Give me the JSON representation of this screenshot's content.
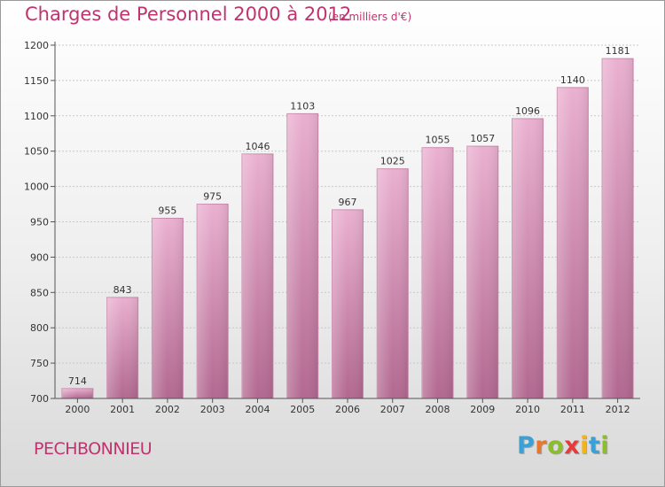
{
  "title": "Charges de Personnel 2000 à 2012",
  "subtitle": "(en milliers d'€)",
  "town": "PECHBONNIEU",
  "logo": {
    "letters": [
      "P",
      "r",
      "o",
      "x",
      "i",
      "t",
      "i"
    ],
    "colors": [
      "#3aa1d6",
      "#e8762b",
      "#8cbd2a",
      "#e83a3a",
      "#f2b31c",
      "#3aa1d6",
      "#8cbd2a"
    ]
  },
  "colors": {
    "bar": "#d98fb8",
    "bar_top": "#eab0d0",
    "bar_bottom": "#b26890",
    "accent": "#c0336e"
  },
  "chart_data": {
    "type": "bar",
    "title": "Charges de Personnel 2000 à 2012",
    "subtitle": "(en milliers d'€)",
    "xlabel": "",
    "ylabel": "",
    "categories": [
      "2000",
      "2001",
      "2002",
      "2003",
      "2004",
      "2005",
      "2006",
      "2007",
      "2008",
      "2009",
      "2010",
      "2011",
      "2012"
    ],
    "values": [
      714,
      843,
      955,
      975,
      1046,
      1103,
      967,
      1025,
      1055,
      1057,
      1096,
      1140,
      1181
    ],
    "ylim": [
      700,
      1200
    ],
    "yticks": [
      700,
      750,
      800,
      850,
      900,
      950,
      1000,
      1050,
      1100,
      1150,
      1200
    ],
    "grid": true
  }
}
